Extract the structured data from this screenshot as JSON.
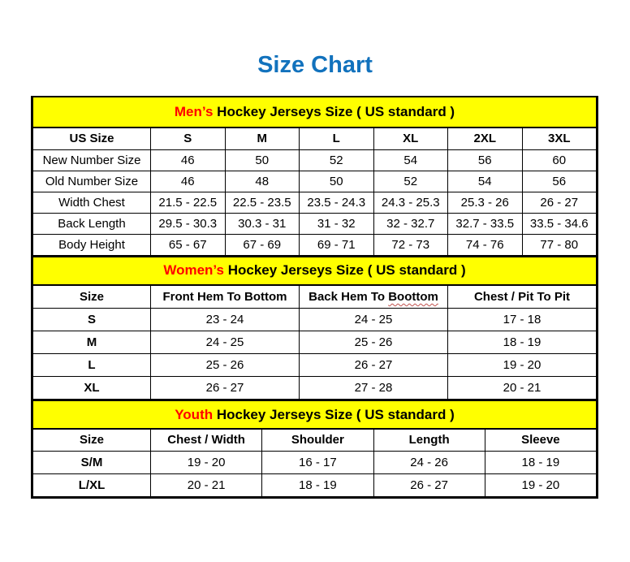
{
  "title": "Size Chart",
  "colors": {
    "title_blue": "#1272BD",
    "band_yellow": "#FFFF00",
    "accent_red": "#FF0000",
    "squiggle_red": "#C0504D",
    "border_black": "#000000"
  },
  "mens_table": {
    "band_highlight": "Men’s",
    "band_rest": "Hockey Jerseys Size ( US standard )",
    "columns": [
      "US Size",
      "S",
      "M",
      "L",
      "XL",
      "2XL",
      "3XL"
    ],
    "rows": [
      {
        "label": "New Number Size",
        "values": [
          "46",
          "50",
          "52",
          "54",
          "56",
          "60"
        ]
      },
      {
        "label": "Old Number Size",
        "values": [
          "46",
          "48",
          "50",
          "52",
          "54",
          "56"
        ]
      },
      {
        "label": "Width Chest",
        "values": [
          "21.5 - 22.5",
          "22.5 - 23.5",
          "23.5 - 24.3",
          "24.3 - 25.3",
          "25.3 - 26",
          "26 - 27"
        ]
      },
      {
        "label": "Back Length",
        "values": [
          "29.5 - 30.3",
          "30.3 - 31",
          "31 - 32",
          "32 - 32.7",
          "32.7 - 33.5",
          "33.5 - 34.6"
        ]
      },
      {
        "label": "Body Height",
        "values": [
          "65 - 67",
          "67 - 69",
          "69 - 71",
          "72 - 73",
          "74 - 76",
          "77 - 80"
        ]
      }
    ]
  },
  "womens_table": {
    "band_highlight": "Women’s",
    "band_rest": "Hockey Jerseys Size ( US standard )",
    "columns": [
      "Size",
      "Front Hem To Bottom",
      "Back Hem To Boottom",
      "Chest / Pit To Pit"
    ],
    "back_hem_prefix": "Back Hem To",
    "back_hem_misspelled": "Boottom",
    "rows": [
      {
        "label": "S",
        "values": [
          "23 - 24",
          "24 - 25",
          "17 - 18"
        ]
      },
      {
        "label": "M",
        "values": [
          "24 - 25",
          "25 - 26",
          "18 - 19"
        ]
      },
      {
        "label": "L",
        "values": [
          "25 - 26",
          "26 - 27",
          "19 - 20"
        ]
      },
      {
        "label": "XL",
        "values": [
          "26 - 27",
          "27 - 28",
          "20 - 21"
        ]
      }
    ]
  },
  "youth_table": {
    "band_highlight": "Youth",
    "band_rest": "Hockey Jerseys Size ( US standard )",
    "columns": [
      "Size",
      "Chest / Width",
      "Shoulder",
      "Length",
      "Sleeve"
    ],
    "rows": [
      {
        "label": "S/M",
        "values": [
          "19 - 20",
          "16 - 17",
          "24 - 26",
          "18 - 19"
        ]
      },
      {
        "label": "L/XL",
        "values": [
          "20 - 21",
          "18 - 19",
          "26 - 27",
          "19 - 20"
        ]
      }
    ]
  }
}
